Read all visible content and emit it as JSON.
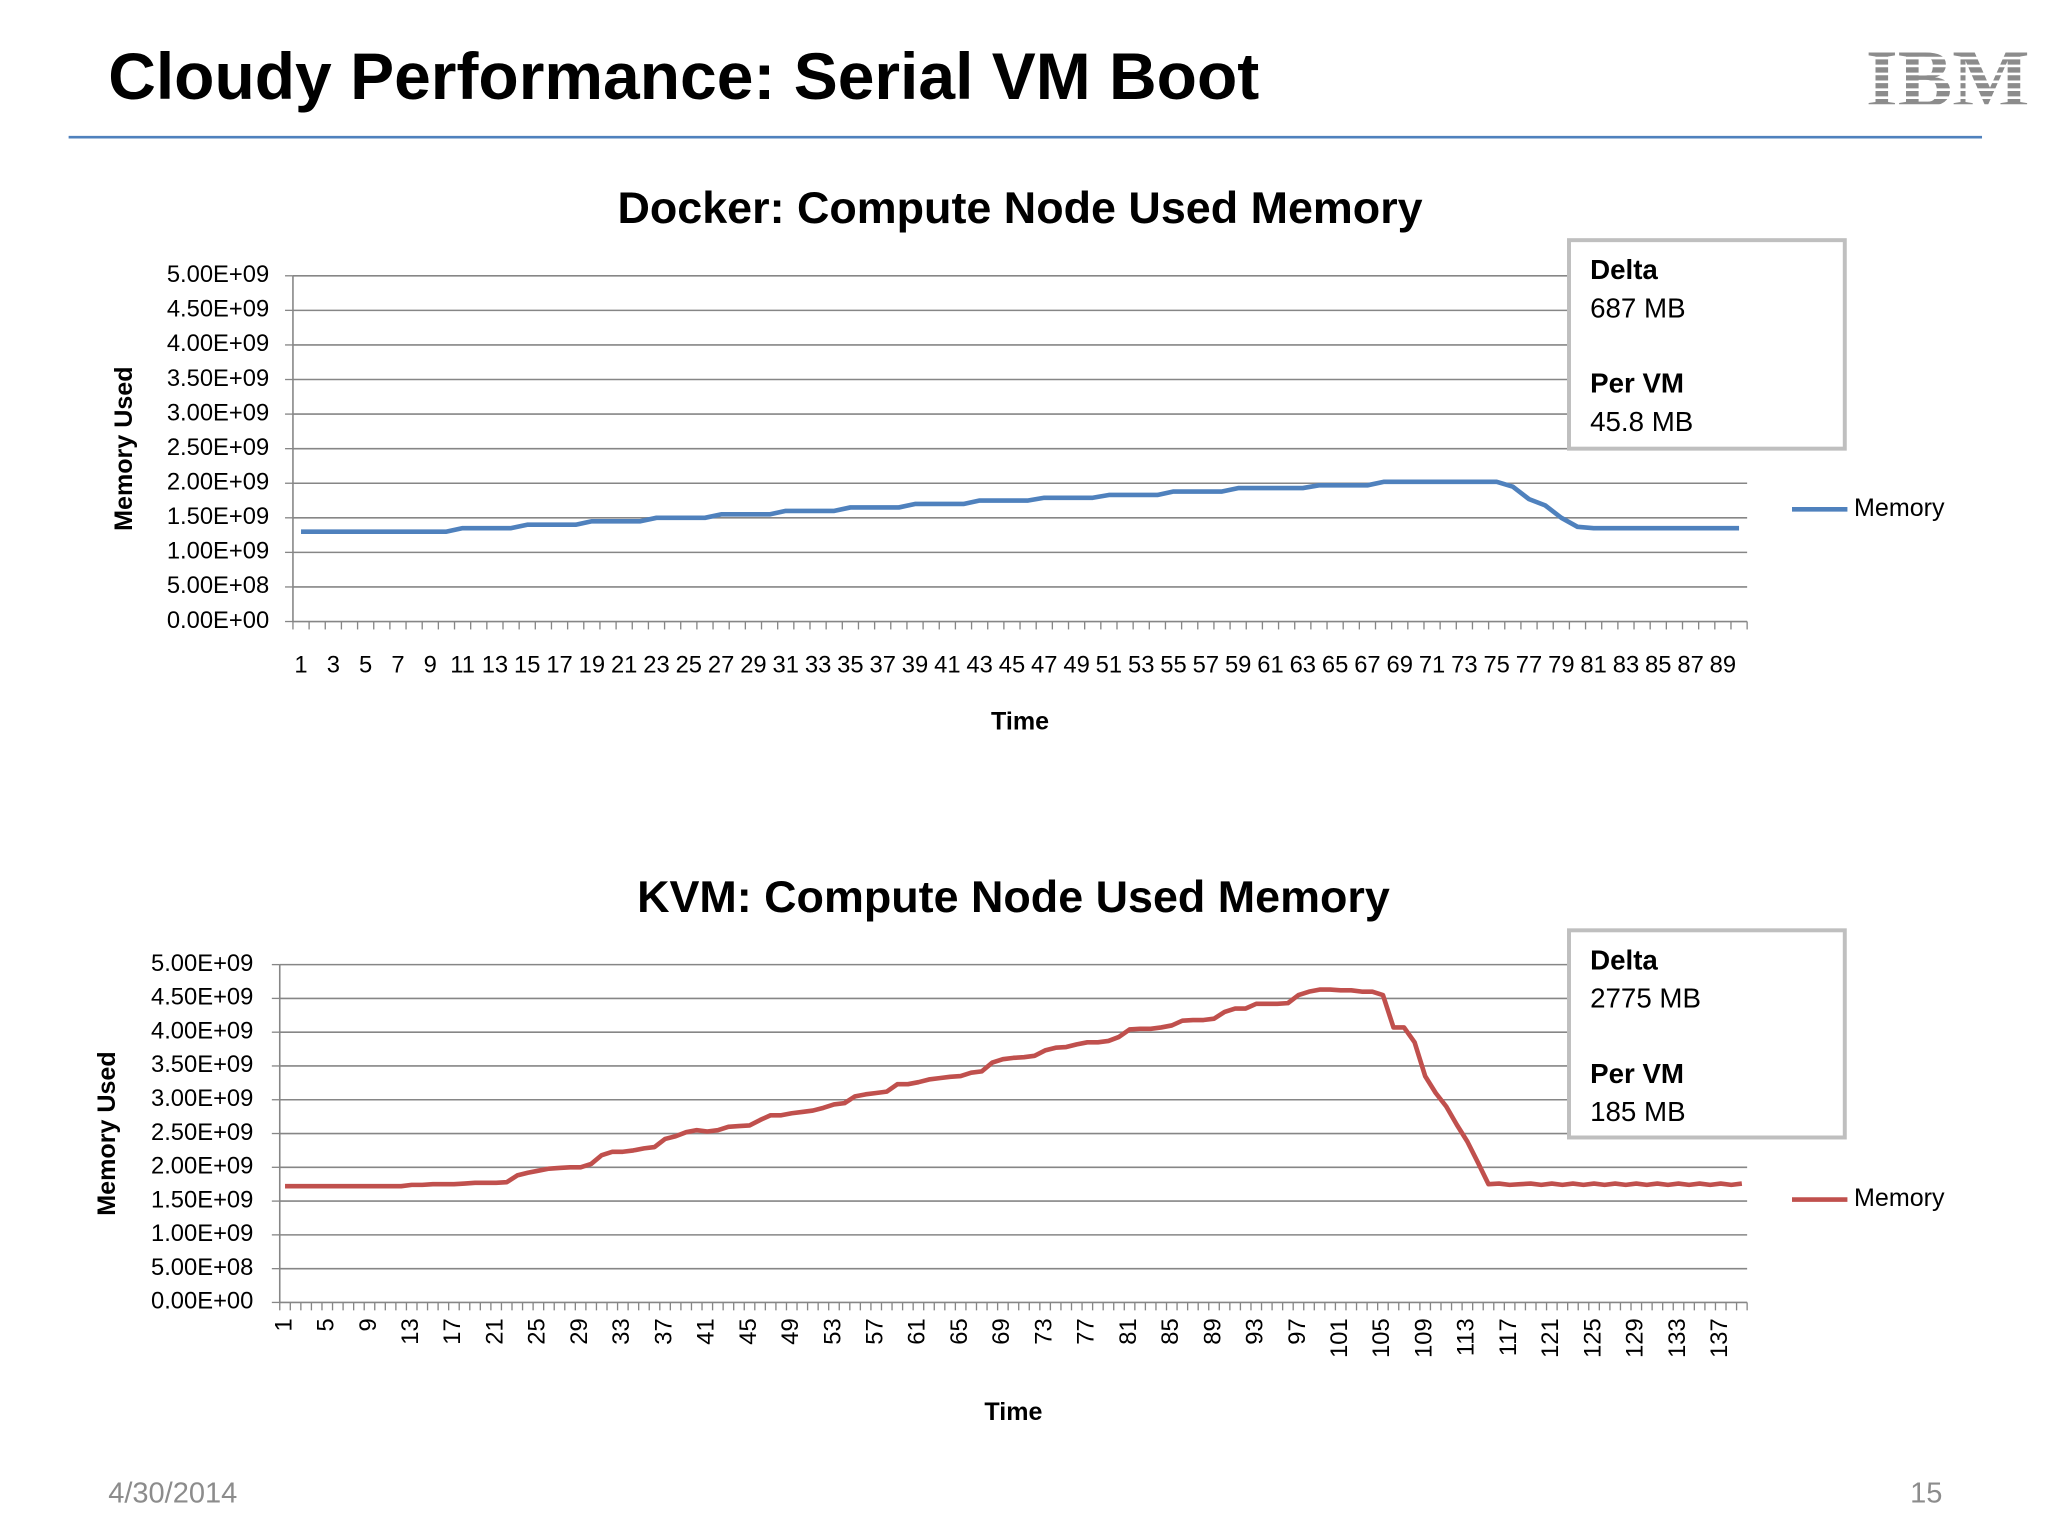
{
  "slide": {
    "title": "Cloudy Performance: Serial VM Boot",
    "logo": "IBM",
    "date": "4/30/2014",
    "page": "15"
  },
  "chart_data": [
    {
      "type": "line",
      "title": "Docker: Compute Node Used Memory",
      "xlabel": "Time",
      "ylabel": "Memory Used",
      "legend": "right",
      "grid": true,
      "annotations": [
        {
          "label": "Delta",
          "value": "687 MB"
        },
        {
          "label": "Per VM",
          "value": "45.8 MB"
        }
      ],
      "categories": [
        1,
        null,
        3,
        null,
        5,
        null,
        7,
        null,
        9,
        null,
        11,
        null,
        13,
        null,
        15,
        null,
        17,
        null,
        19,
        null,
        21,
        null,
        23,
        null,
        25,
        null,
        27,
        null,
        29,
        null,
        31,
        null,
        33,
        null,
        35,
        null,
        37,
        null,
        39,
        null,
        41,
        null,
        43,
        null,
        45,
        null,
        47,
        null,
        49,
        null,
        51,
        null,
        53,
        null,
        55,
        null,
        57,
        null,
        59,
        null,
        61,
        null,
        63,
        null,
        65,
        null,
        67,
        null,
        69,
        null,
        71,
        null,
        73,
        null,
        75,
        null,
        77,
        null,
        79,
        null,
        81,
        null,
        83,
        null,
        85,
        null,
        87,
        null,
        89,
        null
      ],
      "series": [
        {
          "name": "Memory",
          "color": "#4f81bd",
          "values": [
            1300000000,
            1300000000,
            1300000000,
            1300000000,
            1300000000,
            1300000000,
            1300000000,
            1300000000,
            1300000000,
            1300000000,
            1350000000,
            1350000000,
            1350000000,
            1350000000,
            1400000000,
            1400000000,
            1400000000,
            1400000000,
            1450000000,
            1450000000,
            1450000000,
            1450000000,
            1500000000,
            1500000000,
            1500000000,
            1500000000,
            1550000000,
            1550000000,
            1550000000,
            1550000000,
            1600000000,
            1600000000,
            1600000000,
            1600000000,
            1650000000,
            1650000000,
            1650000000,
            1650000000,
            1700000000,
            1700000000,
            1700000000,
            1700000000,
            1750000000,
            1750000000,
            1750000000,
            1750000000,
            1790000000,
            1790000000,
            1790000000,
            1790000000,
            1830000000,
            1830000000,
            1830000000,
            1830000000,
            1880000000,
            1880000000,
            1880000000,
            1880000000,
            1930000000,
            1930000000,
            1930000000,
            1930000000,
            1930000000,
            1970000000,
            1970000000,
            1970000000,
            1970000000,
            2020000000,
            2020000000,
            2020000000,
            2020000000,
            2020000000,
            2020000000,
            2020000000,
            2020000000,
            1950000000,
            1770000000,
            1680000000,
            1500000000,
            1370000000,
            1350000000,
            1350000000,
            1350000000,
            1350000000,
            1350000000,
            1350000000,
            1350000000,
            1350000000,
            1350000000,
            1350000000
          ]
        }
      ],
      "ylim": [
        0,
        5000000000
      ],
      "yticks": [
        {
          "value": 0,
          "label": "0.00E+00"
        },
        {
          "value": 500000000,
          "label": "5.00E+08"
        },
        {
          "value": 1000000000,
          "label": "1.00E+09"
        },
        {
          "value": 1500000000,
          "label": "1.50E+09"
        },
        {
          "value": 2000000000,
          "label": "2.00E+09"
        },
        {
          "value": 2500000000,
          "label": "2.50E+09"
        },
        {
          "value": 3000000000,
          "label": "3.00E+09"
        },
        {
          "value": 3500000000,
          "label": "3.50E+09"
        },
        {
          "value": 4000000000,
          "label": "4.00E+09"
        },
        {
          "value": 4500000000,
          "label": "4.50E+09"
        },
        {
          "value": 5000000000,
          "label": "5.00E+09"
        }
      ]
    },
    {
      "type": "line",
      "title": "KVM: Compute Node Used Memory",
      "xlabel": "Time",
      "ylabel": "Memory Used",
      "legend": "right",
      "grid": true,
      "annotations": [
        {
          "label": "Delta",
          "value": "2775 MB"
        },
        {
          "label": "Per VM",
          "value": "185 MB"
        }
      ],
      "categories": [
        1,
        null,
        null,
        null,
        5,
        null,
        null,
        null,
        9,
        null,
        null,
        null,
        13,
        null,
        null,
        null,
        17,
        null,
        null,
        null,
        21,
        null,
        null,
        null,
        25,
        null,
        null,
        null,
        29,
        null,
        null,
        null,
        33,
        null,
        null,
        null,
        37,
        null,
        null,
        null,
        41,
        null,
        null,
        null,
        45,
        null,
        null,
        null,
        49,
        null,
        null,
        null,
        53,
        null,
        null,
        null,
        57,
        null,
        null,
        null,
        61,
        null,
        null,
        null,
        65,
        null,
        null,
        null,
        69,
        null,
        null,
        null,
        73,
        null,
        null,
        null,
        77,
        null,
        null,
        null,
        81,
        null,
        null,
        null,
        85,
        null,
        null,
        null,
        89,
        null,
        null,
        null,
        93,
        null,
        null,
        null,
        97,
        null,
        null,
        null,
        101,
        null,
        null,
        null,
        105,
        null,
        null,
        null,
        109,
        null,
        null,
        null,
        113,
        null,
        null,
        null,
        117,
        null,
        null,
        null,
        121,
        null,
        null,
        null,
        125,
        null,
        null,
        null,
        129,
        null,
        null,
        null,
        133,
        null,
        null,
        null,
        137,
        null,
        null
      ],
      "series": [
        {
          "name": "Memory",
          "color": "#c0504d",
          "values": [
            1720000000,
            1720000000,
            1720000000,
            1720000000,
            1720000000,
            1720000000,
            1720000000,
            1720000000,
            1720000000,
            1720000000,
            1720000000,
            1720000000,
            1740000000,
            1740000000,
            1750000000,
            1750000000,
            1750000000,
            1760000000,
            1770000000,
            1770000000,
            1770000000,
            1780000000,
            1880000000,
            1920000000,
            1950000000,
            1980000000,
            1990000000,
            2000000000,
            2000000000,
            2050000000,
            2180000000,
            2230000000,
            2230000000,
            2250000000,
            2280000000,
            2300000000,
            2420000000,
            2460000000,
            2520000000,
            2550000000,
            2530000000,
            2550000000,
            2600000000,
            2610000000,
            2620000000,
            2700000000,
            2770000000,
            2770000000,
            2800000000,
            2820000000,
            2840000000,
            2880000000,
            2930000000,
            2950000000,
            3050000000,
            3080000000,
            3100000000,
            3120000000,
            3230000000,
            3230000000,
            3260000000,
            3300000000,
            3320000000,
            3340000000,
            3350000000,
            3400000000,
            3420000000,
            3550000000,
            3600000000,
            3620000000,
            3630000000,
            3650000000,
            3730000000,
            3770000000,
            3780000000,
            3820000000,
            3850000000,
            3850000000,
            3870000000,
            3930000000,
            4040000000,
            4050000000,
            4050000000,
            4070000000,
            4100000000,
            4170000000,
            4180000000,
            4180000000,
            4200000000,
            4300000000,
            4350000000,
            4350000000,
            4420000000,
            4420000000,
            4420000000,
            4430000000,
            4550000000,
            4600000000,
            4630000000,
            4630000000,
            4620000000,
            4620000000,
            4600000000,
            4600000000,
            4550000000,
            4070000000,
            4070000000,
            3850000000,
            3350000000,
            3100000000,
            2900000000,
            2630000000,
            2380000000,
            2070000000,
            1750000000,
            1760000000,
            1740000000,
            1750000000,
            1760000000,
            1740000000,
            1760000000,
            1740000000,
            1760000000,
            1740000000,
            1760000000,
            1740000000,
            1760000000,
            1740000000,
            1760000000,
            1740000000,
            1760000000,
            1740000000,
            1760000000,
            1740000000,
            1760000000,
            1740000000,
            1760000000,
            1740000000,
            1760000000
          ]
        }
      ],
      "ylim": [
        0,
        5000000000
      ],
      "yticks": [
        {
          "value": 0,
          "label": "0.00E+00"
        },
        {
          "value": 500000000,
          "label": "5.00E+08"
        },
        {
          "value": 1000000000,
          "label": "1.00E+09"
        },
        {
          "value": 1500000000,
          "label": "1.50E+09"
        },
        {
          "value": 2000000000,
          "label": "2.00E+09"
        },
        {
          "value": 2500000000,
          "label": "2.50E+09"
        },
        {
          "value": 3000000000,
          "label": "3.00E+09"
        },
        {
          "value": 3500000000,
          "label": "3.50E+09"
        },
        {
          "value": 4000000000,
          "label": "4.00E+09"
        },
        {
          "value": 4500000000,
          "label": "4.50E+09"
        },
        {
          "value": 5000000000,
          "label": "5.00E+09"
        }
      ]
    }
  ]
}
